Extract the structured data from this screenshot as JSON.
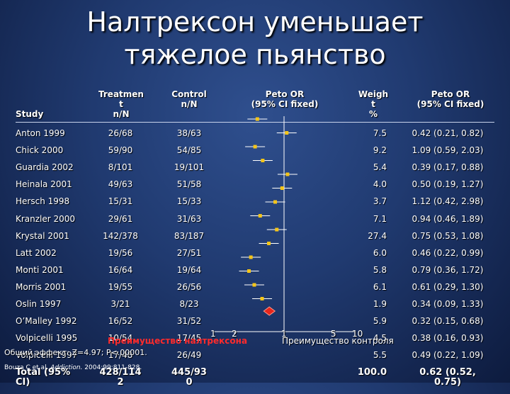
{
  "title": {
    "line1": "Налтрексон уменьшает",
    "line2": "тяжелое пьянство"
  },
  "headers": {
    "study": "Study",
    "treatment": "Treatmen\nt\nn/N",
    "control": "Control\nn/N",
    "peto_or_plot": "Peto OR\n(95% CI fixed)",
    "weight": "Weigh\nt\n%",
    "peto_or": "Peto OR\n(95% CI fixed)"
  },
  "rows": [
    {
      "study": "Anton 1999",
      "treatment": "26/68",
      "control": "38/63",
      "weight": "7.5",
      "or_text": "0.42 (0.21, 0.82)"
    },
    {
      "study": "Chick 2000",
      "treatment": "59/90",
      "control": "54/85",
      "weight": "9.2",
      "or_text": "1.09 (0.59, 2.03)"
    },
    {
      "study": "Guardia 2002",
      "treatment": "8/101",
      "control": "19/101",
      "weight": "5.4",
      "or_text": "0.39 (0.17, 0.88)"
    },
    {
      "study": "Heinala 2001",
      "treatment": "49/63",
      "control": "51/58",
      "weight": "4.0",
      "or_text": "0.50 (0.19, 1.27)"
    },
    {
      "study": "Hersch 1998",
      "treatment": "15/31",
      "control": "15/33",
      "weight": "3.7",
      "or_text": "1.12 (0.42, 2.98)"
    },
    {
      "study": "Kranzler 2000",
      "treatment": "29/61",
      "control": "31/63",
      "weight": "7.1",
      "or_text": "0.94 (0.46, 1.89)"
    },
    {
      "study": "Krystal 2001",
      "treatment": "142/378",
      "control": "83/187",
      "weight": "27.4",
      "or_text": "0.75 (0.53, 1.08)"
    },
    {
      "study": "Latt 2002",
      "treatment": "19/56",
      "control": "27/51",
      "weight": "6.0",
      "or_text": "0.46 (0.22, 0.99)"
    },
    {
      "study": "Monti 2001",
      "treatment": "16/64",
      "control": "19/64",
      "weight": "5.8",
      "or_text": "0.79 (0.36, 1.72)"
    },
    {
      "study": "Morris 2001",
      "treatment": "19/55",
      "control": "26/56",
      "weight": "6.1",
      "or_text": "0.61 (0.29, 1.30)"
    },
    {
      "study": "Oslin 1997",
      "treatment": "3/21",
      "control": "8/23",
      "weight": "1.9",
      "or_text": "0.34 (0.09, 1.33)"
    },
    {
      "study": "O’Malley 1992",
      "treatment": "16/52",
      "control": "31/52",
      "weight": "5.9",
      "or_text": "0.32 (0.15, 0.68)"
    },
    {
      "study": "Volpicelli 1995",
      "treatment": "10/54",
      "control": "17/45",
      "weight": "4.5",
      "or_text": "0.38 (0.16, 0.93)"
    },
    {
      "study": "Volpicelli 1997",
      "treatment": "17/48",
      "control": "26/49",
      "weight": "5.5",
      "or_text": "0.49 (0.22, 1.09)"
    }
  ],
  "total": {
    "study": "Total (95%",
    "study_cont": "CI)",
    "treatment": "428/114",
    "treatment_cont": "2",
    "control": "445/93",
    "control_cont": "0",
    "weight": "100.0",
    "or_text": "0.62 (0.52,",
    "or_text_cont": "0.75)"
  },
  "axis": {
    "tick_labels": [
      "1",
      "2",
      "1",
      "5",
      "10"
    ],
    "favours_treatment": "Преимущество налтрексона",
    "favours_control": "Преимущество контроля"
  },
  "effect_test": "Общий эффект: Z=4.97; P<.00001.",
  "citation": {
    "authors": "Bouza C et al. ",
    "journal": "Addiction.",
    "ref": " 2004;99:811-828."
  },
  "chart_data": {
    "type": "scatter",
    "x": [
      0.42,
      1.09,
      0.39,
      0.5,
      1.12,
      0.94,
      0.75,
      0.46,
      0.79,
      0.61,
      0.34,
      0.32,
      0.38,
      0.49
    ],
    "series": [
      {
        "values": [
          0.42,
          1.09,
          0.39,
          0.5,
          1.12,
          0.94,
          0.75,
          0.46,
          0.79,
          0.61,
          0.34,
          0.32,
          0.38,
          0.49
        ]
      }
    ],
    "pooled": 0.62,
    "scale": "log",
    "marker_color": "#f5c518",
    "pooled_color": "#e8261c"
  }
}
